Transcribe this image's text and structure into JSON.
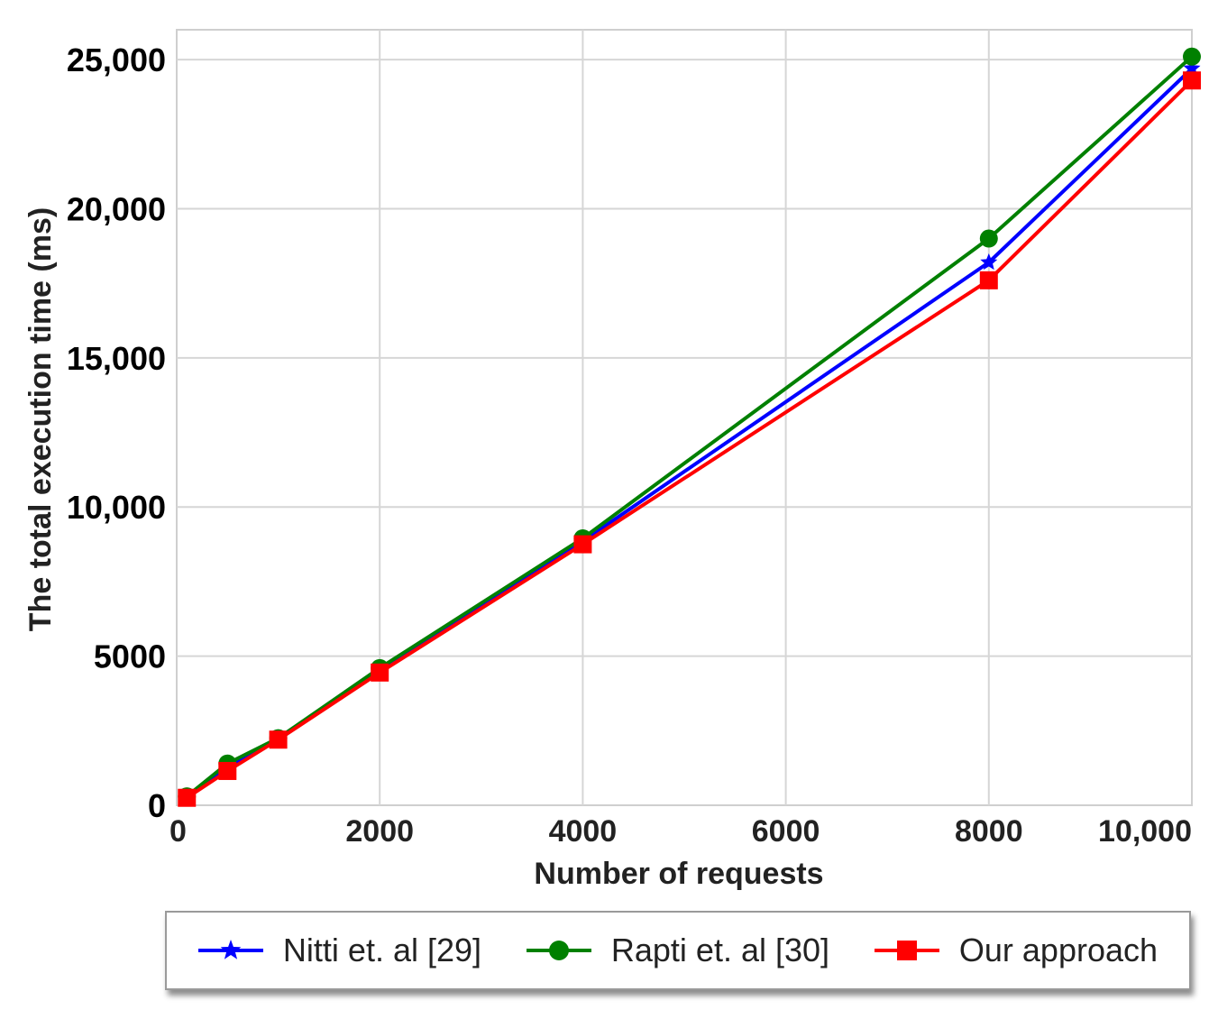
{
  "chart_data": {
    "type": "line",
    "xlabel": "Number of requests",
    "ylabel": "The total execution time (ms)",
    "xlim": [
      0,
      10000
    ],
    "ylim": [
      0,
      26000
    ],
    "xticks": [
      {
        "value": 0,
        "label": "0"
      },
      {
        "value": 2000,
        "label": "2000"
      },
      {
        "value": 4000,
        "label": "4000"
      },
      {
        "value": 6000,
        "label": "6000"
      },
      {
        "value": 8000,
        "label": "8000"
      },
      {
        "value": 10000,
        "label": "10,000"
      }
    ],
    "yticks": [
      {
        "value": 0,
        "label": "0"
      },
      {
        "value": 5000,
        "label": "5000"
      },
      {
        "value": 10000,
        "label": "10,000"
      },
      {
        "value": 15000,
        "label": "15,000"
      },
      {
        "value": 20000,
        "label": "20,000"
      },
      {
        "value": 25000,
        "label": "25,000"
      }
    ],
    "grid": true,
    "legend_position": "bottom",
    "series": [
      {
        "name": "Nitti et. al [29]",
        "color": "#0000ff",
        "marker": "star",
        "points": [
          [
            100,
            300
          ],
          [
            500,
            1250
          ],
          [
            1000,
            2250
          ],
          [
            2000,
            4550
          ],
          [
            4000,
            8850
          ],
          [
            8000,
            18200
          ],
          [
            10000,
            24700
          ]
        ]
      },
      {
        "name": "Rapti et. al [30]",
        "color": "#008000",
        "marker": "circle",
        "points": [
          [
            100,
            300
          ],
          [
            500,
            1400
          ],
          [
            1000,
            2250
          ],
          [
            2000,
            4600
          ],
          [
            4000,
            8950
          ],
          [
            8000,
            19000
          ],
          [
            10000,
            25100
          ]
        ]
      },
      {
        "name": "Our approach",
        "color": "#ff0000",
        "marker": "square",
        "points": [
          [
            100,
            250
          ],
          [
            500,
            1150
          ],
          [
            1000,
            2200
          ],
          [
            2000,
            4450
          ],
          [
            4000,
            8750
          ],
          [
            8000,
            17600
          ],
          [
            10000,
            24300
          ]
        ]
      }
    ]
  }
}
